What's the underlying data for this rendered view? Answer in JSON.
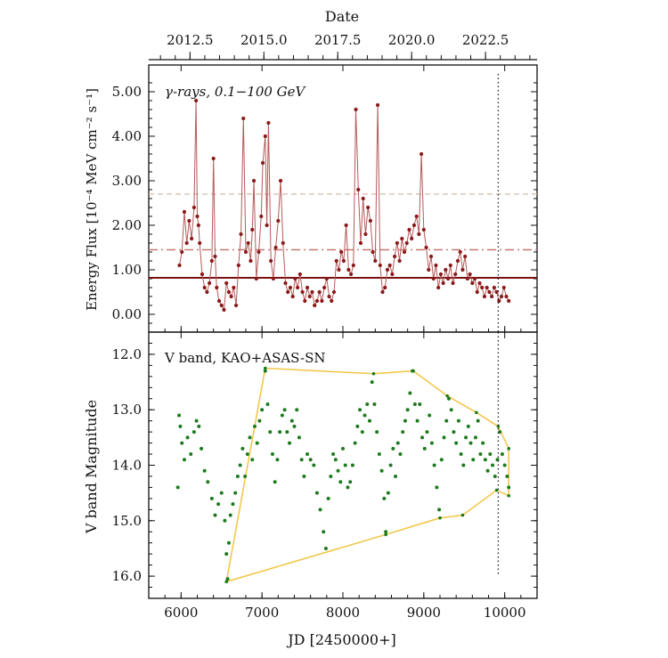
{
  "figure": {
    "top_axis_label": "Date",
    "bottom_axis_label": "JD [2450000+]"
  },
  "colors": {
    "gamma": "#8b1a1a",
    "gamma_line": "#b55a5a",
    "gamma_mean": "#7a1010",
    "gamma_dashdot": "#c77a70",
    "gamma_dashed": "#d8b8a8",
    "optical": "#1e7a1e",
    "envelope": "#f2c84b",
    "vline": "#222222"
  },
  "chart_data": [
    {
      "type": "line",
      "panel": "top",
      "annotation": "γ-rays, 0.1−100 GeV",
      "ylabel": "Energy Flux [10⁻⁴ MeV cm⁻² s⁻¹]",
      "xlabel": "JD [2450000+]",
      "xlim": [
        5600,
        10400
      ],
      "ylim": [
        -0.4,
        5.6
      ],
      "yticks": [
        0,
        1,
        2,
        3,
        4,
        5
      ],
      "ytick_labels": [
        "0.00",
        "1.00",
        "2.00",
        "3.00",
        "4.00",
        "5.00"
      ],
      "top_xlabel": "Date",
      "top_xticks": [
        2012.5,
        2015.0,
        2017.5,
        2020.0,
        2022.5
      ],
      "top_xtick_labels": [
        "2012.5",
        "2015.0",
        "2017.5",
        "2020.0",
        "2022.5"
      ],
      "hlines": [
        {
          "y": 0.82,
          "style": "solid"
        },
        {
          "y": 1.45,
          "style": "dashdot"
        },
        {
          "y": 2.7,
          "style": "dashed"
        }
      ],
      "vline": {
        "x": 9920,
        "style": "dotted"
      },
      "series": [
        {
          "x": [
            5980,
            6010,
            6040,
            6070,
            6100,
            6130,
            6160,
            6185,
            6200,
            6215,
            6230,
            6260,
            6290,
            6320,
            6350,
            6380,
            6400,
            6420,
            6440,
            6470,
            6500,
            6530,
            6560,
            6590,
            6620,
            6650,
            6680,
            6710,
            6740,
            6770,
            6800,
            6830,
            6860,
            6880,
            6900,
            6930,
            6960,
            6990,
            7010,
            7040,
            7060,
            7080,
            7110,
            7140,
            7170,
            7200,
            7230,
            7260,
            7290,
            7320,
            7350,
            7380,
            7410,
            7440,
            7470,
            7500,
            7530,
            7560,
            7590,
            7620,
            7650,
            7680,
            7710,
            7740,
            7770,
            7800,
            7830,
            7860,
            7890,
            7920,
            7950,
            7980,
            8010,
            8040,
            8070,
            8100,
            8130,
            8160,
            8190,
            8220,
            8250,
            8280,
            8310,
            8340,
            8370,
            8400,
            8430,
            8460,
            8490,
            8520,
            8550,
            8580,
            8610,
            8640,
            8670,
            8700,
            8730,
            8760,
            8790,
            8820,
            8850,
            8880,
            8910,
            8940,
            8970,
            9000,
            9030,
            9060,
            9090,
            9120,
            9150,
            9180,
            9210,
            9240,
            9270,
            9300,
            9330,
            9360,
            9390,
            9420,
            9450,
            9480,
            9510,
            9540,
            9570,
            9600,
            9630,
            9660,
            9690,
            9720,
            9750,
            9780,
            9810,
            9840,
            9870,
            9900,
            9930,
            9960,
            9990,
            10020,
            10050
          ],
          "y": [
            1.1,
            1.4,
            2.3,
            1.6,
            2.1,
            1.7,
            2.4,
            4.8,
            2.2,
            2.0,
            1.6,
            0.9,
            0.6,
            0.5,
            0.7,
            1.2,
            3.5,
            1.3,
            0.6,
            0.3,
            0.2,
            0.1,
            0.7,
            0.5,
            0.4,
            0.6,
            0.2,
            1.1,
            1.8,
            4.4,
            1.4,
            1.6,
            1.2,
            1.9,
            3.0,
            0.8,
            1.4,
            2.2,
            3.4,
            4.0,
            2.0,
            4.3,
            1.2,
            0.8,
            1.5,
            2.1,
            3.0,
            1.6,
            0.7,
            0.5,
            0.6,
            0.4,
            0.8,
            0.6,
            0.9,
            0.5,
            0.3,
            0.6,
            0.4,
            0.5,
            0.2,
            0.3,
            0.5,
            0.3,
            0.6,
            0.8,
            0.4,
            0.3,
            0.5,
            1.2,
            1.0,
            1.4,
            1.2,
            2.0,
            1.0,
            0.9,
            1.1,
            4.6,
            2.8,
            1.6,
            2.6,
            1.8,
            2.4,
            2.1,
            1.4,
            1.2,
            4.7,
            1.1,
            0.5,
            0.6,
            1.0,
            1.1,
            0.9,
            1.3,
            1.6,
            1.2,
            1.7,
            1.4,
            1.6,
            1.9,
            1.7,
            2.0,
            2.2,
            1.8,
            3.6,
            1.9,
            1.5,
            1.0,
            1.3,
            0.8,
            1.1,
            0.6,
            0.9,
            0.7,
            1.0,
            0.8,
            1.1,
            0.7,
            0.9,
            1.2,
            1.4,
            1.0,
            1.3,
            0.8,
            0.9,
            0.7,
            0.8,
            0.5,
            0.7,
            0.6,
            0.4,
            0.6,
            0.5,
            0.4,
            0.6,
            0.5,
            0.3,
            0.4,
            0.6,
            0.4,
            0.3
          ]
        }
      ]
    },
    {
      "type": "scatter",
      "panel": "bottom",
      "annotation": "V band, KAO+ASAS-SN",
      "ylabel": "V band Magnitude",
      "xlabel": "JD [2450000+]",
      "xlim": [
        5600,
        10400
      ],
      "ylim": [
        16.4,
        11.6
      ],
      "yticks": [
        12,
        13,
        14,
        15,
        16
      ],
      "ytick_labels": [
        "12.0",
        "13.0",
        "14.0",
        "15.0",
        "16.0"
      ],
      "xticks": [
        6000,
        7000,
        8000,
        9000,
        10000
      ],
      "xtick_labels": [
        "6000",
        "7000",
        "8000",
        "9000",
        "10000"
      ],
      "vline": {
        "x": 9920,
        "style": "dotted"
      },
      "envelope_upper": {
        "x": [
          7040,
          8380,
          8870,
          9290,
          9650,
          9920,
          10050
        ],
        "y": [
          12.25,
          12.35,
          12.3,
          12.75,
          13.05,
          13.3,
          13.7
        ]
      },
      "envelope_lower": {
        "x": [
          6560,
          8530,
          9200,
          9480,
          9900,
          10050
        ],
        "y": [
          16.1,
          15.25,
          14.95,
          14.9,
          14.45,
          14.55
        ]
      },
      "envelope_left_edge": {
        "x": [
          6560,
          7040
        ],
        "y": [
          16.1,
          12.25
        ]
      },
      "envelope_right_edge": {
        "x": [
          10050,
          10050
        ],
        "y": [
          13.7,
          14.55
        ]
      },
      "series": [
        {
          "x": [
            5960,
            5975,
            5990,
            6010,
            6040,
            6080,
            6120,
            6160,
            6190,
            6220,
            6250,
            6290,
            6330,
            6380,
            6420,
            6460,
            6500,
            6540,
            6560,
            6575,
            6590,
            6610,
            6640,
            6670,
            6700,
            6730,
            6760,
            6790,
            6820,
            6850,
            6880,
            6910,
            6940,
            6970,
            7000,
            7040,
            7070,
            7100,
            7130,
            7160,
            7190,
            7220,
            7250,
            7280,
            7310,
            7340,
            7370,
            7400,
            7430,
            7460,
            7490,
            7520,
            7560,
            7600,
            7640,
            7680,
            7720,
            7760,
            7790,
            7820,
            7850,
            7880,
            7910,
            7940,
            7970,
            8000,
            8030,
            8060,
            8090,
            8120,
            8150,
            8180,
            8210,
            8240,
            8270,
            8300,
            8330,
            8360,
            8390,
            8420,
            8450,
            8480,
            8510,
            8530,
            8560,
            8590,
            8620,
            8650,
            8680,
            8710,
            8740,
            8770,
            8800,
            8830,
            8860,
            8890,
            8920,
            8950,
            8980,
            9010,
            9040,
            9070,
            9100,
            9130,
            9160,
            9190,
            9220,
            9250,
            9280,
            9310,
            9340,
            9370,
            9400,
            9430,
            9460,
            9490,
            9520,
            9550,
            9580,
            9610,
            9640,
            9670,
            9700,
            9730,
            9760,
            9790,
            9820,
            9850,
            9880,
            9910,
            9940,
            9970,
            10000,
            10030,
            10050
          ],
          "y": [
            14.4,
            13.1,
            13.3,
            13.6,
            13.9,
            13.5,
            13.8,
            13.4,
            13.2,
            13.3,
            13.7,
            14.1,
            14.3,
            14.6,
            14.9,
            14.7,
            14.5,
            15.0,
            15.6,
            16.05,
            15.4,
            14.9,
            14.7,
            14.5,
            14.2,
            14.0,
            13.7,
            14.2,
            13.8,
            13.5,
            13.9,
            13.3,
            13.6,
            13.2,
            13.0,
            12.3,
            12.9,
            13.4,
            13.8,
            14.3,
            13.9,
            13.4,
            13.1,
            13.0,
            13.4,
            13.6,
            13.2,
            13.3,
            13.0,
            13.5,
            13.9,
            14.2,
            13.8,
            13.9,
            14.0,
            14.5,
            14.8,
            15.2,
            15.5,
            14.6,
            14.2,
            13.8,
            13.9,
            14.1,
            14.3,
            13.7,
            14.0,
            14.4,
            14.3,
            14.0,
            13.6,
            13.3,
            13.0,
            13.4,
            13.1,
            12.9,
            13.2,
            12.5,
            12.9,
            13.4,
            13.8,
            14.1,
            14.6,
            15.2,
            14.5,
            14.0,
            13.7,
            14.2,
            13.6,
            13.8,
            13.4,
            13.2,
            13.0,
            12.7,
            12.3,
            12.9,
            13.2,
            12.9,
            13.5,
            13.7,
            13.4,
            13.1,
            13.6,
            14.0,
            14.4,
            14.8,
            13.9,
            13.5,
            13.2,
            12.8,
            13.0,
            13.4,
            13.6,
            13.2,
            13.8,
            14.0,
            13.5,
            13.3,
            13.6,
            13.9,
            13.5,
            13.2,
            13.8,
            13.6,
            13.9,
            14.1,
            13.8,
            14.0,
            14.2,
            13.9,
            13.4,
            13.8,
            14.0,
            14.2,
            14.4
          ]
        }
      ]
    }
  ]
}
